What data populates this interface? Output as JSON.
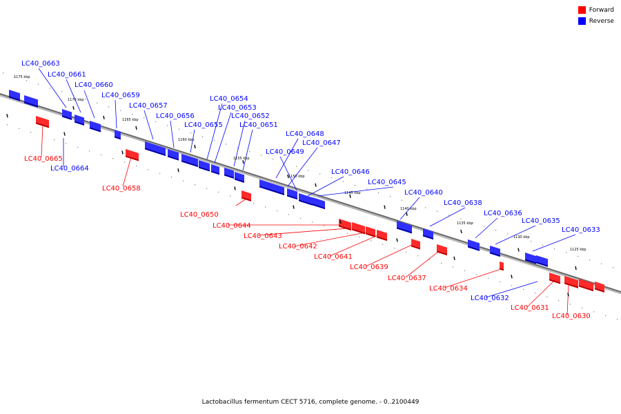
{
  "legend": {
    "forward_label": "Forward",
    "reverse_label": "Reverse",
    "forward_color": "#ff0000",
    "reverse_color": "#0000ff"
  },
  "caption": "Lactobacillus fermentum CECT 5716, complete genome. - 0..2100449",
  "ticks": [
    "1175 kbp",
    "1170 kbp",
    "1165 kbp",
    "1160 kbp",
    "1155 kbp",
    "1150 kbp",
    "1145 kbp",
    "1140 kbp",
    "1135 kbp",
    "1130 kbp",
    "1125 kbp"
  ],
  "genes": [
    {
      "label": "LC40_0663",
      "strand": "reverse"
    },
    {
      "label": "LC40_0661",
      "strand": "reverse"
    },
    {
      "label": "LC40_0660",
      "strand": "reverse"
    },
    {
      "label": "LC40_0659",
      "strand": "reverse"
    },
    {
      "label": "LC40_0657",
      "strand": "reverse"
    },
    {
      "label": "LC40_0656",
      "strand": "reverse"
    },
    {
      "label": "LC40_0655",
      "strand": "reverse"
    },
    {
      "label": "LC40_0654",
      "strand": "reverse"
    },
    {
      "label": "LC40_0653",
      "strand": "reverse"
    },
    {
      "label": "LC40_0652",
      "strand": "reverse"
    },
    {
      "label": "LC40_0651",
      "strand": "reverse"
    },
    {
      "label": "LC40_0648",
      "strand": "reverse"
    },
    {
      "label": "LC40_0647",
      "strand": "reverse"
    },
    {
      "label": "LC40_0649",
      "strand": "reverse"
    },
    {
      "label": "LC40_0646",
      "strand": "reverse"
    },
    {
      "label": "LC40_0645",
      "strand": "reverse"
    },
    {
      "label": "LC40_0640",
      "strand": "reverse"
    },
    {
      "label": "LC40_0638",
      "strand": "reverse"
    },
    {
      "label": "LC40_0636",
      "strand": "reverse"
    },
    {
      "label": "LC40_0635",
      "strand": "reverse"
    },
    {
      "label": "LC40_0633",
      "strand": "reverse"
    },
    {
      "label": "LC40_0665",
      "strand": "forward"
    },
    {
      "label": "LC40_0664",
      "strand": "reverse"
    },
    {
      "label": "LC40_0658",
      "strand": "forward"
    },
    {
      "label": "LC40_0650",
      "strand": "forward"
    },
    {
      "label": "LC40_0644",
      "strand": "forward"
    },
    {
      "label": "LC40_0643",
      "strand": "forward"
    },
    {
      "label": "LC40_0642",
      "strand": "forward"
    },
    {
      "label": "LC40_0641",
      "strand": "forward"
    },
    {
      "label": "LC40_0639",
      "strand": "forward"
    },
    {
      "label": "LC40_0637",
      "strand": "forward"
    },
    {
      "label": "LC40_0634",
      "strand": "forward"
    },
    {
      "label": "LC40_0632",
      "strand": "reverse"
    },
    {
      "label": "LC40_0631",
      "strand": "forward"
    },
    {
      "label": "LC40_0630",
      "strand": "forward"
    }
  ]
}
